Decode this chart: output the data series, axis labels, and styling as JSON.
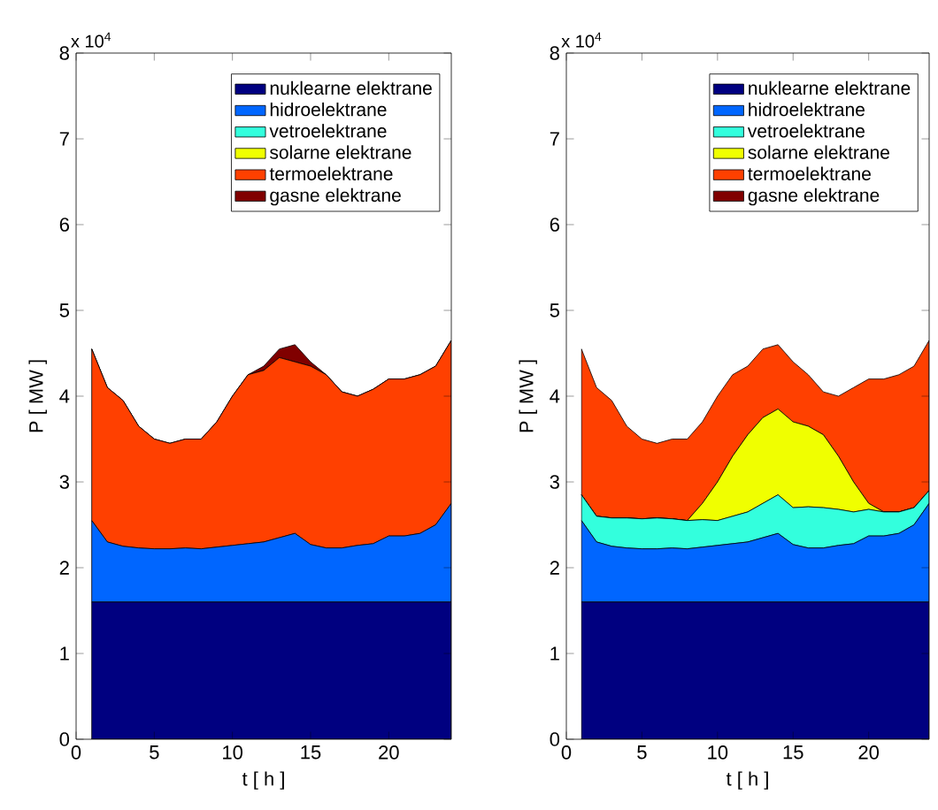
{
  "chart_data": [
    {
      "type": "area",
      "stacked": true,
      "xlabel": "t [ h ]",
      "ylabel": "P [ MW ]",
      "annotations": [
        "x 10$^{4}$"
      ],
      "legend": "top right",
      "grid": false,
      "x": [
        1,
        2,
        3,
        4,
        5,
        6,
        7,
        8,
        9,
        10,
        11,
        12,
        13,
        14,
        15,
        16,
        17,
        18,
        19,
        20,
        21,
        22,
        23,
        24
      ],
      "xlim": [
        0,
        24
      ],
      "xticks": [
        0,
        5,
        10,
        15,
        20
      ],
      "ylim": [
        0,
        8
      ],
      "yticks": [
        0,
        1,
        2,
        3,
        4,
        5,
        6,
        7,
        8
      ],
      "series": [
        {
          "name": "nuklearne elektrane",
          "color": "#000080",
          "values": [
            1.6,
            1.6,
            1.6,
            1.6,
            1.6,
            1.6,
            1.6,
            1.6,
            1.6,
            1.6,
            1.6,
            1.6,
            1.6,
            1.6,
            1.6,
            1.6,
            1.6,
            1.6,
            1.6,
            1.6,
            1.6,
            1.6,
            1.6,
            1.6
          ]
        },
        {
          "name": "hidroelektrane",
          "color": "#0066ff",
          "values": [
            0.95,
            0.7,
            0.65,
            0.63,
            0.62,
            0.62,
            0.63,
            0.62,
            0.64,
            0.66,
            0.68,
            0.7,
            0.75,
            0.8,
            0.67,
            0.63,
            0.63,
            0.66,
            0.68,
            0.77,
            0.77,
            0.8,
            0.9,
            1.15
          ]
        },
        {
          "name": "vetroelektrane",
          "color": "#33ffdd",
          "values": [
            null,
            null,
            null,
            null,
            null,
            null,
            null,
            null,
            null,
            null,
            null,
            null,
            null,
            null,
            null,
            null,
            null,
            null,
            null,
            null,
            null,
            null,
            null,
            null
          ]
        },
        {
          "name": "solarne elektrane",
          "color": "#f0ff00",
          "values": [
            null,
            null,
            null,
            null,
            null,
            null,
            null,
            null,
            null,
            null,
            null,
            null,
            null,
            null,
            null,
            null,
            null,
            null,
            null,
            null,
            null,
            null,
            null,
            null
          ]
        },
        {
          "name": "termoelektrane",
          "color": "#ff4000",
          "values": [
            2.0,
            1.8,
            1.7,
            1.42,
            1.28,
            1.23,
            1.27,
            1.28,
            1.46,
            1.74,
            1.97,
            2.0,
            2.1,
            2.0,
            2.08,
            2.02,
            1.82,
            1.74,
            1.8,
            1.83,
            1.83,
            1.85,
            1.85,
            1.9
          ]
        },
        {
          "name": "gasne elektrane",
          "color": "#800000",
          "values": [
            0,
            0,
            0,
            0,
            0,
            0,
            0,
            0,
            0,
            0,
            0,
            0.05,
            0.1,
            0.2,
            0.05,
            0,
            0,
            0,
            0,
            0,
            0,
            0,
            0,
            0
          ]
        }
      ]
    },
    {
      "type": "area",
      "stacked": true,
      "xlabel": "t [ h ]",
      "ylabel": "P [ MW ]",
      "annotations": [
        "x 10$^{4}$"
      ],
      "legend": "top right",
      "grid": false,
      "x": [
        1,
        2,
        3,
        4,
        5,
        6,
        7,
        8,
        9,
        10,
        11,
        12,
        13,
        14,
        15,
        16,
        17,
        18,
        19,
        20,
        21,
        22,
        23,
        24
      ],
      "xlim": [
        0,
        24
      ],
      "xticks": [
        0,
        5,
        10,
        15,
        20
      ],
      "ylim": [
        0,
        8
      ],
      "yticks": [
        0,
        1,
        2,
        3,
        4,
        5,
        6,
        7,
        8
      ],
      "series": [
        {
          "name": "nuklearne elektrane",
          "color": "#000080",
          "values": [
            1.6,
            1.6,
            1.6,
            1.6,
            1.6,
            1.6,
            1.6,
            1.6,
            1.6,
            1.6,
            1.6,
            1.6,
            1.6,
            1.6,
            1.6,
            1.6,
            1.6,
            1.6,
            1.6,
            1.6,
            1.6,
            1.6,
            1.6,
            1.6
          ]
        },
        {
          "name": "hidroelektrane",
          "color": "#0066ff",
          "values": [
            0.95,
            0.7,
            0.65,
            0.63,
            0.62,
            0.62,
            0.63,
            0.62,
            0.64,
            0.66,
            0.68,
            0.7,
            0.75,
            0.8,
            0.67,
            0.63,
            0.63,
            0.66,
            0.68,
            0.77,
            0.77,
            0.8,
            0.9,
            1.15
          ]
        },
        {
          "name": "vetroelektrane",
          "color": "#33ffdd",
          "values": [
            0.3,
            0.3,
            0.33,
            0.35,
            0.35,
            0.36,
            0.34,
            0.33,
            0.32,
            0.29,
            0.32,
            0.35,
            0.4,
            0.45,
            0.43,
            0.48,
            0.47,
            0.42,
            0.37,
            0.31,
            0.28,
            0.25,
            0.2,
            0.15
          ]
        },
        {
          "name": "solarne elektrane",
          "color": "#f0ff00",
          "values": [
            0,
            0,
            0,
            0,
            0,
            0,
            0,
            0,
            0.19,
            0.45,
            0.7,
            0.9,
            1.0,
            1.0,
            1.0,
            0.94,
            0.85,
            0.62,
            0.35,
            0.07,
            0,
            0,
            0,
            0
          ]
        },
        {
          "name": "termoelektrane",
          "color": "#ff4000",
          "values": [
            1.7,
            1.5,
            1.37,
            1.07,
            0.93,
            0.87,
            0.93,
            0.95,
            0.95,
            1.0,
            0.95,
            0.8,
            0.8,
            0.75,
            0.7,
            0.6,
            0.5,
            0.7,
            1.1,
            1.45,
            1.55,
            1.6,
            1.65,
            1.75
          ]
        },
        {
          "name": "gasne elektrane",
          "color": "#800000",
          "values": [
            null,
            null,
            null,
            null,
            null,
            null,
            null,
            null,
            null,
            null,
            null,
            null,
            null,
            null,
            null,
            null,
            null,
            null,
            null,
            null,
            null,
            null,
            null,
            null
          ]
        }
      ]
    }
  ]
}
